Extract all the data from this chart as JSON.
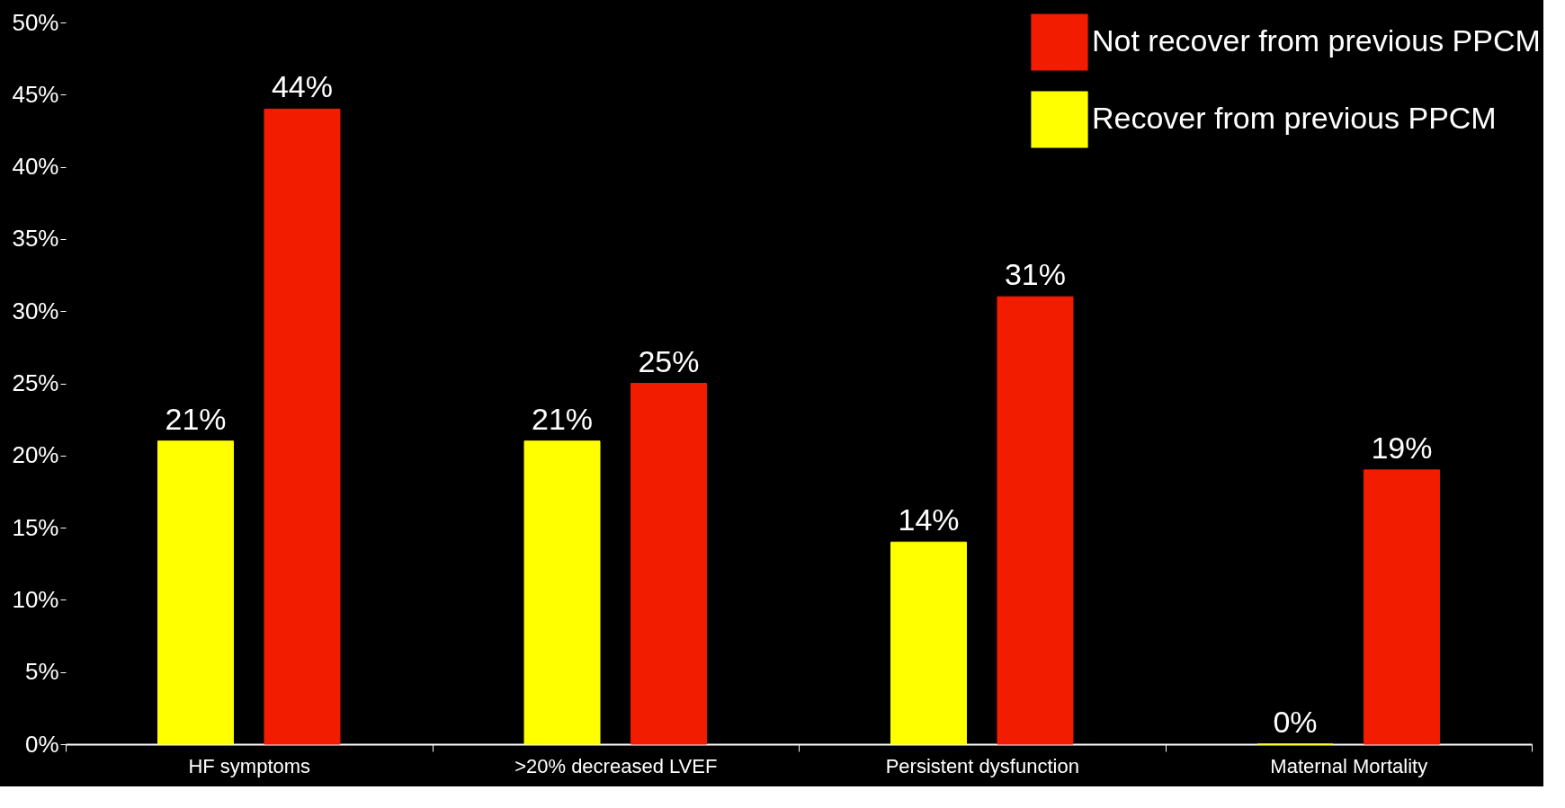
{
  "chart_data": {
    "type": "bar",
    "categories": [
      "HF symptoms",
      ">20% decreased LVEF",
      "Persistent dysfunction",
      "Maternal Mortality"
    ],
    "series": [
      {
        "name": "Recover from previous PPCM",
        "color": "#ffff00",
        "values": [
          21,
          21,
          14,
          0
        ],
        "value_labels": [
          "21%",
          "21%",
          "14%",
          "0%"
        ]
      },
      {
        "name": "Not recover from previous PPCM",
        "color": "#f21c00",
        "values": [
          44,
          25,
          31,
          19
        ],
        "value_labels": [
          "44%",
          "25%",
          "31%",
          "19%"
        ]
      }
    ],
    "ylim": [
      0,
      50
    ],
    "yticks": [
      {
        "value": 0,
        "label": "0%"
      },
      {
        "value": 5,
        "label": "5%"
      },
      {
        "value": 10,
        "label": "10%"
      },
      {
        "value": 15,
        "label": "15%"
      },
      {
        "value": 20,
        "label": "20%"
      },
      {
        "value": 25,
        "label": "25%"
      },
      {
        "value": 30,
        "label": "30%"
      },
      {
        "value": 35,
        "label": "35%"
      },
      {
        "value": 40,
        "label": "40%"
      },
      {
        "value": 45,
        "label": "45%"
      },
      {
        "value": 50,
        "label": "50%"
      }
    ],
    "grid": false,
    "legend": "top right"
  }
}
